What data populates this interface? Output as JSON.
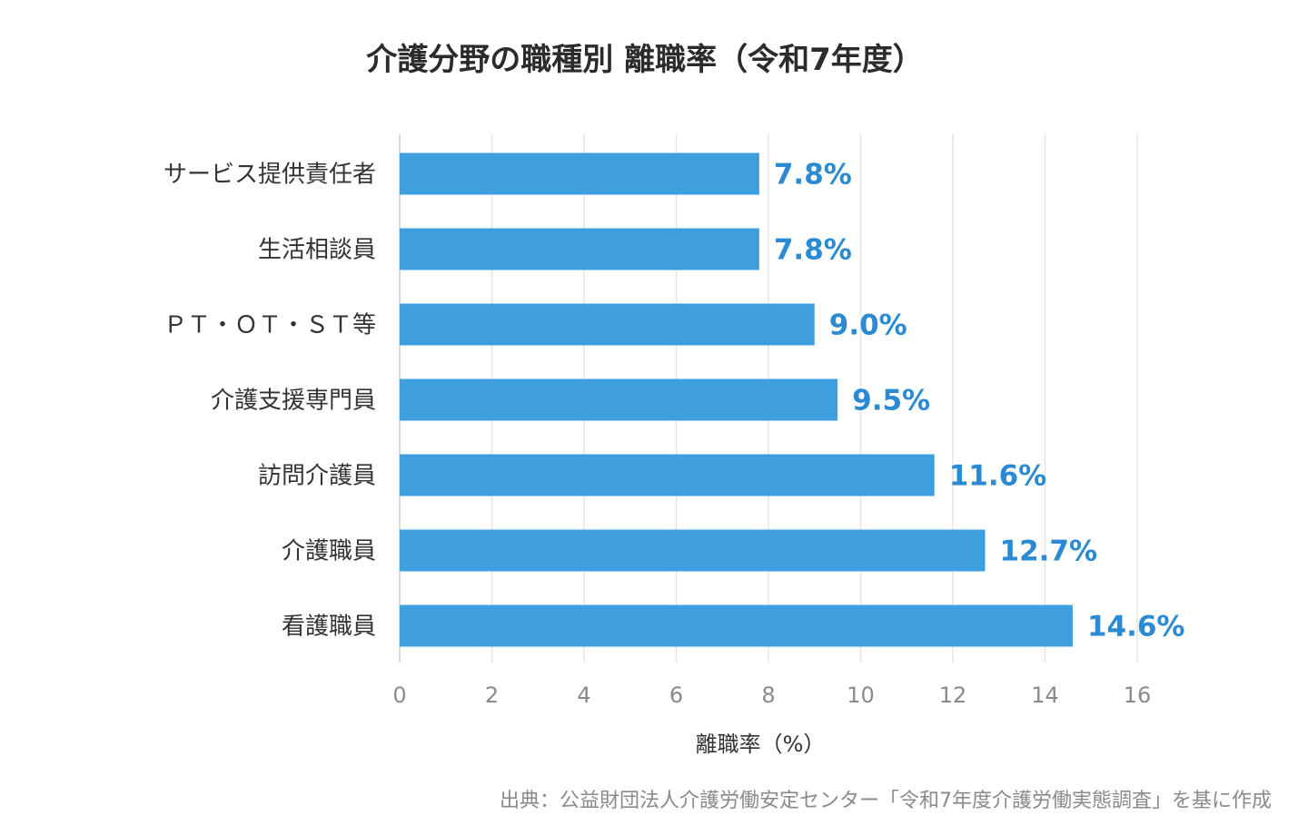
{
  "chart_data": {
    "type": "bar",
    "orientation": "horizontal",
    "title": "介護分野の職種別 離職率（令和7年度）",
    "categories": [
      "サービス提供責任者",
      "生活相談員",
      "ＰＴ・ＯＴ・ＳＴ等",
      "介護支援専門員",
      "訪問介護員",
      "介護職員",
      "看護職員"
    ],
    "values": [
      7.8,
      7.8,
      9.0,
      9.5,
      11.6,
      12.7,
      14.6
    ],
    "data_labels": [
      "7.8%",
      "7.8%",
      "9.0%",
      "9.5%",
      "11.6%",
      "12.7%",
      "14.6%"
    ],
    "xlabel": "離職率（%）",
    "ylabel": "",
    "xlim": [
      0,
      16
    ],
    "x_ticks": [
      0,
      2,
      4,
      6,
      8,
      10,
      12,
      14,
      16
    ],
    "grid": true,
    "bar_color": "#3f9fde",
    "label_color": "#2a8ad4"
  },
  "source_note": "出典：公益財団法人介護労働安定センター「令和7年度介護労働実態調査」を基に作成"
}
